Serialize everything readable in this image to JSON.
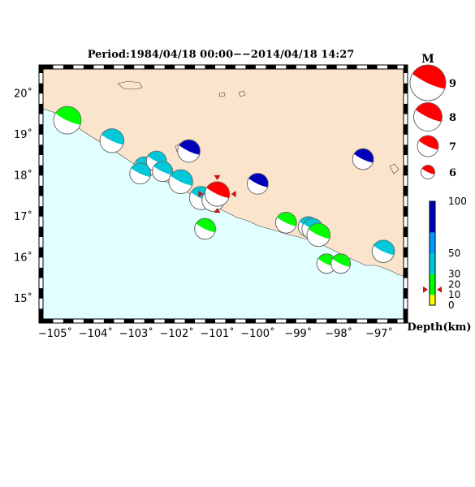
{
  "map": {
    "title": "Period:1984/04/18 00:00−−2014/04/18 14:27",
    "lon_labels": [
      "−105˚",
      "−104˚",
      "−103˚",
      "−102˚",
      "−101˚",
      "−100˚",
      "−99˚",
      "−98˚",
      "−97˚"
    ],
    "lat_labels": [
      "20˚",
      "19˚",
      "18˚",
      "17˚",
      "16˚",
      "15˚"
    ],
    "lon_range": [
      -105.3,
      -96.4
    ],
    "lat_range": [
      14.5,
      20.6
    ],
    "colors": {
      "land": "#fbe4cc",
      "ocean": "#e1ffff",
      "highlight": "#ff0000",
      "marker": "#cc1111"
    },
    "events": [
      {
        "lon": -104.7,
        "lat": 19.35,
        "mag": 8.1,
        "depth": 20,
        "highlight": false
      },
      {
        "lon": -103.6,
        "lat": 18.85,
        "mag": 7.6,
        "depth": 30,
        "highlight": false
      },
      {
        "lon": -102.8,
        "lat": 18.2,
        "mag": 7.2,
        "depth": 30,
        "highlight": false
      },
      {
        "lon": -102.5,
        "lat": 18.35,
        "mag": 7.1,
        "depth": 45,
        "highlight": false
      },
      {
        "lon": -102.9,
        "lat": 18.05,
        "mag": 7.2,
        "depth": 30,
        "highlight": false
      },
      {
        "lon": -102.35,
        "lat": 18.1,
        "mag": 7.1,
        "depth": 45,
        "highlight": false
      },
      {
        "lon": -101.9,
        "lat": 17.85,
        "mag": 7.6,
        "depth": 30,
        "highlight": false
      },
      {
        "lon": -101.4,
        "lat": 17.45,
        "mag": 7.5,
        "depth": 30,
        "highlight": false
      },
      {
        "lon": -101.1,
        "lat": 17.4,
        "mag": 7.4,
        "depth": 30,
        "highlight": false
      },
      {
        "lon": -101.3,
        "lat": 16.7,
        "mag": 7.2,
        "depth": 20,
        "highlight": false
      },
      {
        "lon": -101.7,
        "lat": 18.6,
        "mag": 7.4,
        "depth": 80,
        "highlight": false
      },
      {
        "lon": -100.0,
        "lat": 17.8,
        "mag": 7.2,
        "depth": 90,
        "highlight": false
      },
      {
        "lon": -99.3,
        "lat": 16.85,
        "mag": 7.2,
        "depth": 20,
        "highlight": false
      },
      {
        "lon": -98.75,
        "lat": 16.75,
        "mag": 7.1,
        "depth": 30,
        "highlight": false
      },
      {
        "lon": -98.65,
        "lat": 16.7,
        "mag": 7.2,
        "depth": 30,
        "highlight": false
      },
      {
        "lon": -98.5,
        "lat": 16.55,
        "mag": 7.5,
        "depth": 20,
        "highlight": false
      },
      {
        "lon": -98.3,
        "lat": 15.85,
        "mag": 7.0,
        "depth": 20,
        "highlight": false
      },
      {
        "lon": -97.95,
        "lat": 15.85,
        "mag": 7.0,
        "depth": 20,
        "highlight": false
      },
      {
        "lon": -97.4,
        "lat": 18.4,
        "mag": 7.2,
        "depth": 85,
        "highlight": false
      },
      {
        "lon": -96.9,
        "lat": 16.15,
        "mag": 7.4,
        "depth": 45,
        "highlight": false
      },
      {
        "lon": -101.0,
        "lat": 17.55,
        "mag": 7.7,
        "depth": 15,
        "highlight": true
      }
    ]
  },
  "magnitude_legend": {
    "heading": "M",
    "items": [
      {
        "label": "9",
        "mag": 9
      },
      {
        "label": "8",
        "mag": 8
      },
      {
        "label": "7",
        "mag": 7
      },
      {
        "label": "6",
        "mag": 6
      }
    ]
  },
  "depth_legend": {
    "title": "Depth(km)",
    "ticks": [
      {
        "label": "100",
        "value": 100
      },
      {
        "label": "50",
        "value": 50
      },
      {
        "label": "30",
        "value": 30
      },
      {
        "label": "20",
        "value": 20
      },
      {
        "label": "10",
        "value": 10
      },
      {
        "label": "0",
        "value": 0
      }
    ],
    "bands": [
      {
        "from": 0,
        "to": 10,
        "color": "#ffff00"
      },
      {
        "from": 10,
        "to": 30,
        "color": "#00ff00"
      },
      {
        "from": 30,
        "to": 50,
        "color": "#00c8d8"
      },
      {
        "from": 50,
        "to": 70,
        "color": "#0099ff"
      },
      {
        "from": 70,
        "to": 100,
        "color": "#0000bb"
      }
    ],
    "marker_depth": 15
  }
}
